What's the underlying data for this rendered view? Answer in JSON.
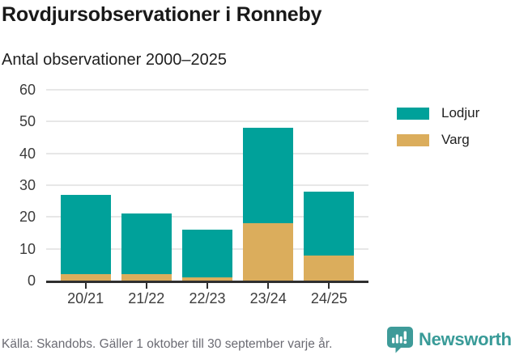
{
  "header": {
    "title": "Rovdjursobservationer i Ronneby",
    "subtitle": "Antal observationer 2000–2025"
  },
  "chart_data": {
    "type": "bar",
    "stacked": true,
    "title": "Rovdjursobservationer i Ronneby",
    "subtitle": "Antal observationer 2000–2025",
    "categories": [
      "20/21",
      "21/22",
      "22/23",
      "23/24",
      "24/25"
    ],
    "series": [
      {
        "name": "Varg",
        "color": "#DBAD5C",
        "values": [
          2,
          2,
          1,
          18,
          8
        ]
      },
      {
        "name": "Lodjur",
        "color": "#00A19A",
        "values": [
          25,
          19,
          15,
          30,
          20
        ]
      }
    ],
    "stack_totals": [
      27,
      21,
      16,
      48,
      28
    ],
    "ylim": [
      0,
      60
    ],
    "yticks": [
      0,
      10,
      20,
      30,
      40,
      50,
      60
    ],
    "xlabel": "",
    "ylabel": "",
    "grid": true,
    "legend": {
      "position": "right",
      "entries": [
        "Lodjur",
        "Varg"
      ]
    }
  },
  "footer": {
    "source": "Källa: Skandobs. Gäller 1 oktober till 30 september varje år.",
    "brand": "Newsworthy"
  },
  "icons": {
    "brand_badge": "newsworthy-speech-bubble-bar-chart-icon"
  },
  "colors": {
    "lodjur": "#00A19A",
    "varg": "#DBAD5C",
    "axis": "#2F2F2F",
    "gridline": "#E7E7E7",
    "brand_teal": "#3E9B99"
  }
}
